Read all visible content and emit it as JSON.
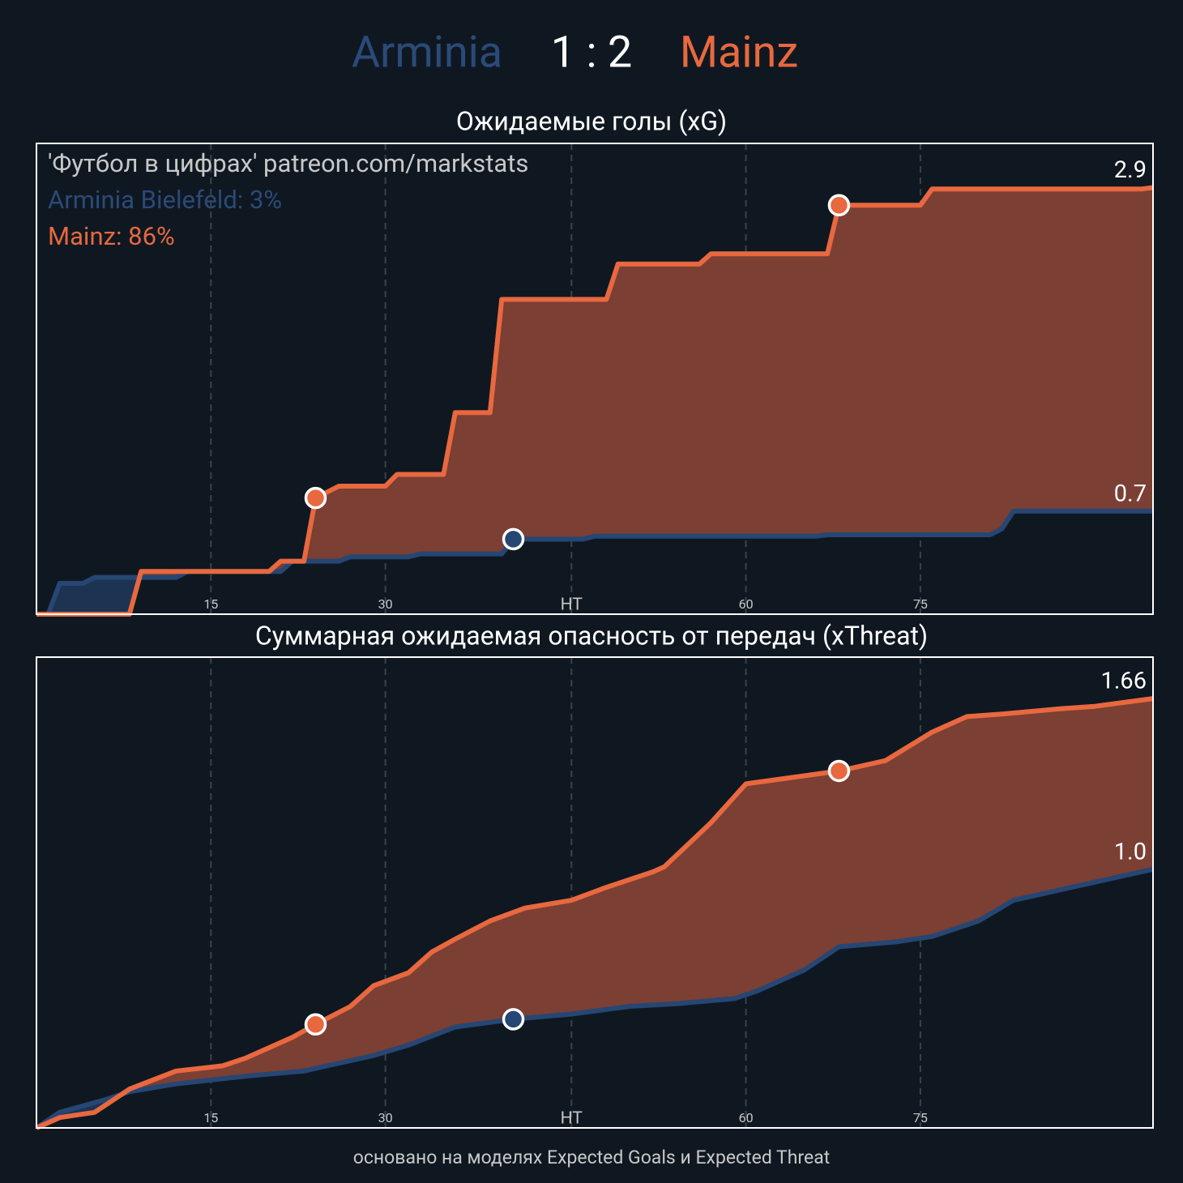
{
  "header": {
    "home": "Arminia",
    "home_color": "#2b4a78",
    "score": "1 : 2",
    "away": "Mainz",
    "away_color": "#e8683f"
  },
  "chart_data": [
    {
      "type": "line",
      "title": "Ожидаемые голы (xG)",
      "annotations": [
        {
          "text": "'Футбол в цифрах' patreon.com/markstats",
          "color": "#c8c8c8"
        },
        {
          "text": "Arminia Bielefeld: 3%",
          "color": "#2b4a78"
        },
        {
          "text": "Mainz: 86%",
          "color": "#e8683f"
        }
      ],
      "xlim": [
        0,
        96
      ],
      "xticks": [
        15,
        30,
        {
          "value": 46,
          "label": "HT"
        },
        {
          "value": 61,
          "label": "60"
        },
        {
          "value": 76,
          "label": "75"
        }
      ],
      "ylim": [
        0,
        3.2
      ],
      "grid": true,
      "series": [
        {
          "color": "#264673",
          "fill": "#1d3352",
          "end_label": "0.7",
          "goals": [
            41
          ],
          "x": [
            0,
            1,
            2,
            4,
            5,
            12,
            13,
            21,
            22,
            26,
            27,
            32,
            33,
            40,
            41,
            47,
            48,
            67,
            68,
            82,
            83,
            84,
            96
          ],
          "values": [
            0,
            0,
            0.21,
            0.21,
            0.25,
            0.25,
            0.29,
            0.29,
            0.36,
            0.36,
            0.39,
            0.39,
            0.41,
            0.41,
            0.51,
            0.51,
            0.53,
            0.53,
            0.54,
            0.54,
            0.58,
            0.7,
            0.7
          ]
        },
        {
          "color": "#e8683f",
          "fill": "#7b3f33",
          "end_label": "2.9",
          "goals": [
            24,
            69
          ],
          "x": [
            0,
            8,
            9,
            11,
            20,
            21,
            23,
            24,
            26,
            30,
            31,
            35,
            36,
            39,
            40,
            49,
            50,
            57,
            58,
            68,
            69,
            76,
            77,
            95,
            96
          ],
          "values": [
            0,
            0,
            0.29,
            0.29,
            0.29,
            0.36,
            0.36,
            0.79,
            0.87,
            0.87,
            0.95,
            0.95,
            1.37,
            1.37,
            2.14,
            2.14,
            2.38,
            2.38,
            2.45,
            2.45,
            2.78,
            2.78,
            2.89,
            2.89,
            2.9
          ]
        }
      ]
    },
    {
      "type": "line",
      "title": "Суммарная ожидаемая опасность от передач (xThreat)",
      "annotations": [],
      "xlim": [
        0,
        96
      ],
      "xticks": [
        15,
        30,
        {
          "value": 46,
          "label": "HT"
        },
        {
          "value": 61,
          "label": "60"
        },
        {
          "value": 76,
          "label": "75"
        }
      ],
      "ylim": [
        0,
        1.82
      ],
      "grid": true,
      "series": [
        {
          "color": "#264673",
          "fill": "#1d3352",
          "end_label": "1.0",
          "goals": [
            41
          ],
          "x": [
            0,
            2,
            6,
            8,
            12,
            16,
            18,
            23,
            27,
            29,
            32,
            36,
            41,
            46,
            51,
            55,
            60,
            62,
            66,
            69,
            74,
            77,
            81,
            84,
            89,
            96
          ],
          "values": [
            0,
            0.06,
            0.11,
            0.14,
            0.17,
            0.19,
            0.2,
            0.22,
            0.26,
            0.28,
            0.32,
            0.39,
            0.42,
            0.44,
            0.47,
            0.48,
            0.5,
            0.53,
            0.61,
            0.7,
            0.72,
            0.74,
            0.8,
            0.88,
            0.93,
            1.0
          ]
        },
        {
          "color": "#e8683f",
          "fill": "#7b3f33",
          "end_label": "1.66",
          "goals": [
            24,
            69
          ],
          "x": [
            0,
            2,
            5,
            8,
            12,
            16,
            18,
            22,
            24,
            27,
            29,
            32,
            34,
            36,
            39,
            42,
            46,
            49,
            53,
            54,
            58,
            61,
            69,
            73,
            77,
            80,
            83,
            88,
            91,
            96
          ],
          "values": [
            0,
            0.04,
            0.06,
            0.15,
            0.22,
            0.24,
            0.27,
            0.35,
            0.4,
            0.47,
            0.55,
            0.6,
            0.68,
            0.73,
            0.8,
            0.85,
            0.88,
            0.93,
            0.99,
            1.01,
            1.18,
            1.33,
            1.38,
            1.42,
            1.53,
            1.59,
            1.6,
            1.62,
            1.63,
            1.66
          ]
        }
      ]
    }
  ],
  "footer": "основано на моделях Expected Goals и Expected Threat"
}
